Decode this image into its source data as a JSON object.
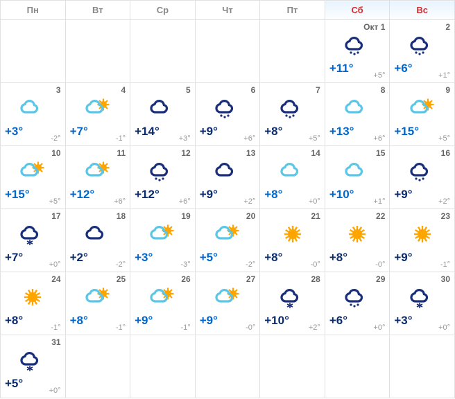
{
  "colors": {
    "weekday_header": "#888888",
    "weekend_header": "#d92b2b",
    "temp_blue": "#0066cc",
    "temp_navy": "#0a2b6e",
    "low_gray": "#999999",
    "daynum_gray": "#666666",
    "border": "#e0e0e0",
    "cloud_light": "#5bc6e8",
    "cloud_dark": "#1a2f7a",
    "sun": "#ffa500",
    "rain_dark": "#1a2f7a"
  },
  "header": [
    {
      "label": "Пн",
      "weekend": false
    },
    {
      "label": "Вт",
      "weekend": false
    },
    {
      "label": "Ср",
      "weekend": false
    },
    {
      "label": "Чт",
      "weekend": false
    },
    {
      "label": "Пт",
      "weekend": false
    },
    {
      "label": "Сб",
      "weekend": true
    },
    {
      "label": "Вс",
      "weekend": true
    }
  ],
  "month_label": "Окт",
  "weeks": [
    [
      null,
      null,
      null,
      null,
      null,
      {
        "day": "1",
        "month": true,
        "icon": "rain-dark",
        "hi": "+11°",
        "lo": "+5°",
        "hi_color": "temp_blue"
      },
      {
        "day": "2",
        "icon": "rain-dark",
        "hi": "+6°",
        "lo": "+1°",
        "hi_color": "temp_blue"
      }
    ],
    [
      {
        "day": "3",
        "icon": "cloud-light",
        "hi": "+3°",
        "lo": "-2°",
        "hi_color": "temp_blue"
      },
      {
        "day": "4",
        "icon": "cloud-light-sun",
        "hi": "+7°",
        "lo": "-1°",
        "hi_color": "temp_blue"
      },
      {
        "day": "5",
        "icon": "cloud-dark",
        "hi": "+14°",
        "lo": "+3°",
        "hi_color": "temp_navy"
      },
      {
        "day": "6",
        "icon": "rain-dark",
        "hi": "+9°",
        "lo": "+6°",
        "hi_color": "temp_navy"
      },
      {
        "day": "7",
        "icon": "rain-dark",
        "hi": "+8°",
        "lo": "+5°",
        "hi_color": "temp_navy"
      },
      {
        "day": "8",
        "icon": "cloud-light",
        "hi": "+13°",
        "lo": "+6°",
        "hi_color": "temp_blue"
      },
      {
        "day": "9",
        "icon": "cloud-light-sun",
        "hi": "+15°",
        "lo": "+5°",
        "hi_color": "temp_blue"
      }
    ],
    [
      {
        "day": "10",
        "icon": "cloud-light-sun",
        "hi": "+15°",
        "lo": "+5°",
        "hi_color": "temp_blue"
      },
      {
        "day": "11",
        "icon": "cloud-light-sun",
        "hi": "+12°",
        "lo": "+6°",
        "hi_color": "temp_blue"
      },
      {
        "day": "12",
        "icon": "rain-dark",
        "hi": "+12°",
        "lo": "+6°",
        "hi_color": "temp_navy"
      },
      {
        "day": "13",
        "icon": "cloud-dark",
        "hi": "+9°",
        "lo": "+2°",
        "hi_color": "temp_navy"
      },
      {
        "day": "14",
        "icon": "cloud-light",
        "hi": "+8°",
        "lo": "+0°",
        "hi_color": "temp_blue"
      },
      {
        "day": "15",
        "icon": "cloud-light",
        "hi": "+10°",
        "lo": "+1°",
        "hi_color": "temp_blue"
      },
      {
        "day": "16",
        "icon": "rain-dark",
        "hi": "+9°",
        "lo": "+2°",
        "hi_color": "temp_navy"
      }
    ],
    [
      {
        "day": "17",
        "icon": "snow-dark",
        "hi": "+7°",
        "lo": "+0°",
        "hi_color": "temp_navy"
      },
      {
        "day": "18",
        "icon": "cloud-dark",
        "hi": "+2°",
        "lo": "-2°",
        "hi_color": "temp_navy"
      },
      {
        "day": "19",
        "icon": "cloud-light-sun",
        "hi": "+3°",
        "lo": "-3°",
        "hi_color": "temp_blue"
      },
      {
        "day": "20",
        "icon": "cloud-light-sun",
        "hi": "+5°",
        "lo": "-2°",
        "hi_color": "temp_blue"
      },
      {
        "day": "21",
        "icon": "sun",
        "hi": "+8°",
        "lo": "-0°",
        "hi_color": "temp_navy"
      },
      {
        "day": "22",
        "icon": "sun",
        "hi": "+8°",
        "lo": "-0°",
        "hi_color": "temp_navy"
      },
      {
        "day": "23",
        "icon": "sun",
        "hi": "+9°",
        "lo": "-1°",
        "hi_color": "temp_navy"
      }
    ],
    [
      {
        "day": "24",
        "icon": "sun",
        "hi": "+8°",
        "lo": "-1°",
        "hi_color": "temp_navy"
      },
      {
        "day": "25",
        "icon": "cloud-light-sun",
        "hi": "+8°",
        "lo": "-1°",
        "hi_color": "temp_blue"
      },
      {
        "day": "26",
        "icon": "cloud-light-sun",
        "hi": "+9°",
        "lo": "-1°",
        "hi_color": "temp_blue"
      },
      {
        "day": "27",
        "icon": "cloud-light-sun",
        "hi": "+9°",
        "lo": "-0°",
        "hi_color": "temp_blue"
      },
      {
        "day": "28",
        "icon": "snow-dark",
        "hi": "+10°",
        "lo": "+2°",
        "hi_color": "temp_navy"
      },
      {
        "day": "29",
        "icon": "rain-dark",
        "hi": "+6°",
        "lo": "+0°",
        "hi_color": "temp_navy"
      },
      {
        "day": "30",
        "icon": "snow-dark",
        "hi": "+3°",
        "lo": "+0°",
        "hi_color": "temp_navy"
      }
    ],
    [
      {
        "day": "31",
        "icon": "snow-dark",
        "hi": "+5°",
        "lo": "+0°",
        "hi_color": "temp_navy"
      },
      null,
      null,
      null,
      null,
      null,
      null
    ]
  ]
}
